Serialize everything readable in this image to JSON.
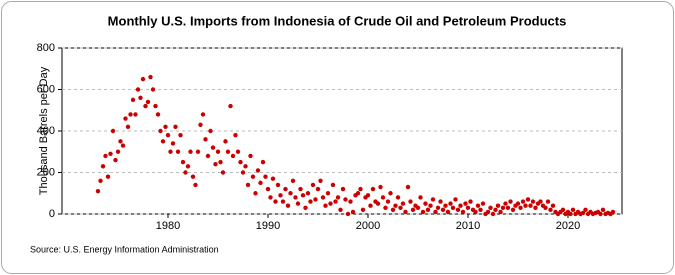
{
  "chart_data": {
    "type": "scatter",
    "title": "Monthly U.S. Imports from Indonesia of Crude Oil and Petroleum Products",
    "y_label": "Thousand Barrels per Day",
    "source": "Source: U.S. Energy Information Administration",
    "color": "#cc0000",
    "grid": true,
    "xlim": [
      1969.4,
      2025.4
    ],
    "ylim": [
      0,
      800
    ],
    "xticks": [
      1980,
      1990,
      2000,
      2010,
      2020
    ],
    "yticks": [
      0,
      200,
      400,
      600,
      800
    ],
    "x": [
      1973,
      1973.25,
      1973.5,
      1973.75,
      1974,
      1974.25,
      1974.5,
      1974.75,
      1975,
      1975.25,
      1975.5,
      1975.75,
      1976,
      1976.25,
      1976.5,
      1976.75,
      1977,
      1977.25,
      1977.5,
      1977.75,
      1978,
      1978.25,
      1978.5,
      1978.75,
      1979,
      1979.25,
      1979.5,
      1979.75,
      1980,
      1980.25,
      1980.5,
      1980.75,
      1981,
      1981.25,
      1981.5,
      1981.75,
      1982,
      1982.25,
      1982.5,
      1982.75,
      1983,
      1983.25,
      1983.5,
      1983.75,
      1984,
      1984.25,
      1984.5,
      1984.75,
      1985,
      1985.25,
      1985.5,
      1985.75,
      1986,
      1986.25,
      1986.5,
      1986.75,
      1987,
      1987.25,
      1987.5,
      1987.75,
      1988,
      1988.25,
      1988.5,
      1988.75,
      1989,
      1989.25,
      1989.5,
      1989.75,
      1990,
      1990.25,
      1990.5,
      1990.75,
      1991,
      1991.25,
      1991.5,
      1991.75,
      1992,
      1992.25,
      1992.5,
      1992.75,
      1993,
      1993.25,
      1993.5,
      1993.75,
      1994,
      1994.25,
      1994.5,
      1994.75,
      1995,
      1995.25,
      1995.5,
      1995.75,
      1996,
      1996.25,
      1996.5,
      1996.75,
      1997,
      1997.25,
      1997.5,
      1997.75,
      1998,
      1998.25,
      1998.5,
      1998.75,
      1999,
      1999.25,
      1999.5,
      1999.75,
      2000,
      2000.25,
      2000.5,
      2000.75,
      2001,
      2001.25,
      2001.5,
      2001.75,
      2002,
      2002.25,
      2002.5,
      2002.75,
      2003,
      2003.25,
      2003.5,
      2003.75,
      2004,
      2004.25,
      2004.5,
      2004.75,
      2005,
      2005.25,
      2005.5,
      2005.75,
      2006,
      2006.25,
      2006.5,
      2006.75,
      2007,
      2007.25,
      2007.5,
      2007.75,
      2008,
      2008.25,
      2008.5,
      2008.75,
      2009,
      2009.25,
      2009.5,
      2009.75,
      2010,
      2010.25,
      2010.5,
      2010.75,
      2011,
      2011.25,
      2011.5,
      2011.75,
      2012,
      2012.25,
      2012.5,
      2012.75,
      2013,
      2013.25,
      2013.5,
      2013.75,
      2014,
      2014.25,
      2014.5,
      2014.75,
      2015,
      2015.25,
      2015.5,
      2015.75,
      2016,
      2016.25,
      2016.5,
      2016.75,
      2017,
      2017.25,
      2017.5,
      2017.75,
      2018,
      2018.25,
      2018.5,
      2018.75,
      2019,
      2019.25,
      2019.5,
      2019.75,
      2020,
      2020.25,
      2020.5,
      2020.75,
      2021,
      2021.25,
      2021.5,
      2021.75,
      2022,
      2022.25,
      2022.5,
      2022.75,
      2023,
      2023.25,
      2023.5,
      2023.75,
      2024,
      2024.25,
      2024.5
    ],
    "values": [
      110,
      160,
      230,
      280,
      180,
      290,
      400,
      260,
      300,
      350,
      330,
      460,
      420,
      480,
      550,
      480,
      600,
      560,
      650,
      520,
      540,
      660,
      600,
      520,
      480,
      400,
      350,
      420,
      380,
      300,
      340,
      420,
      300,
      380,
      250,
      200,
      230,
      300,
      180,
      140,
      300,
      430,
      480,
      360,
      280,
      400,
      320,
      240,
      300,
      250,
      200,
      350,
      300,
      520,
      280,
      380,
      300,
      250,
      200,
      230,
      140,
      280,
      180,
      100,
      210,
      150,
      250,
      180,
      120,
      80,
      170,
      60,
      140,
      90,
      60,
      120,
      40,
      100,
      160,
      80,
      50,
      120,
      90,
      30,
      100,
      60,
      140,
      70,
      120,
      160,
      80,
      40,
      100,
      50,
      140,
      60,
      80,
      20,
      120,
      70,
      0,
      60,
      10,
      90,
      100,
      120,
      20,
      80,
      90,
      40,
      120,
      60,
      50,
      130,
      80,
      30,
      60,
      100,
      20,
      40,
      80,
      30,
      50,
      10,
      130,
      60,
      20,
      40,
      30,
      80,
      10,
      50,
      20,
      40,
      70,
      10,
      30,
      60,
      20,
      40,
      10,
      50,
      30,
      70,
      20,
      40,
      10,
      50,
      30,
      60,
      20,
      10,
      40,
      20,
      50,
      0,
      10,
      30,
      0,
      20,
      40,
      10,
      30,
      50,
      30,
      60,
      20,
      40,
      50,
      30,
      60,
      40,
      70,
      40,
      60,
      30,
      50,
      60,
      40,
      30,
      60,
      20,
      40,
      10,
      0,
      10,
      20,
      0,
      10,
      0,
      20,
      0,
      10,
      0,
      5,
      20,
      0,
      10,
      0,
      5,
      10,
      0,
      20,
      0,
      5,
      0,
      10
    ]
  }
}
